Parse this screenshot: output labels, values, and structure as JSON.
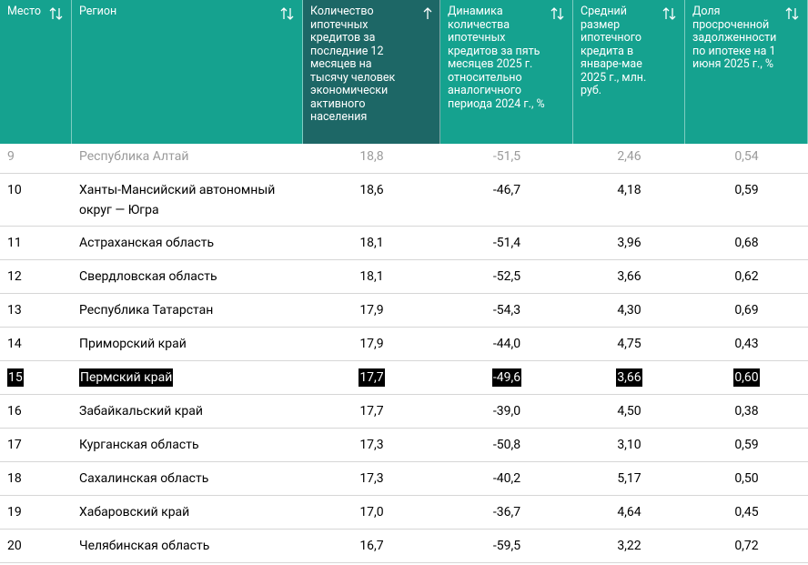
{
  "table": {
    "headers": [
      "Место",
      "Регион",
      "Количество ипотечных кредитов за последние 12 месяцев на тысячу человек экономически активного населения",
      "Динамика количества ипотечных кредитов за пять месяцев 2025 г. относительно аналогичного периода 2024 г., %",
      "Средний размер ипотечного кредита в январе-мае 2025 г., млн. руб.",
      "Доля просроченной задолженности по ипотеке на 1 июня 2025 г., %"
    ],
    "rows": [
      [
        "9",
        "Республика Алтай",
        "18,8",
        "-51,5",
        "2,46",
        "0,54"
      ],
      [
        "10",
        "Ханты-Мансийский автономный округ — Югра",
        "18,6",
        "-46,7",
        "4,18",
        "0,59"
      ],
      [
        "11",
        "Астраханская область",
        "18,1",
        "-51,4",
        "3,96",
        "0,68"
      ],
      [
        "12",
        "Свердловская область",
        "18,1",
        "-52,5",
        "3,66",
        "0,62"
      ],
      [
        "13",
        "Республика Татарстан",
        "17,9",
        "-54,3",
        "4,30",
        "0,69"
      ],
      [
        "14",
        "Приморский край",
        "17,9",
        "-44,0",
        "4,75",
        "0,43"
      ],
      [
        "15",
        "Пермский край",
        "17,7",
        "-49,6",
        "3,66",
        "0,60"
      ],
      [
        "16",
        "Забайкальский край",
        "17,7",
        "-39,0",
        "4,50",
        "0,38"
      ],
      [
        "17",
        "Курганская область",
        "17,3",
        "-50,8",
        "3,10",
        "0,59"
      ],
      [
        "18",
        "Сахалинская область",
        "17,3",
        "-40,2",
        "5,17",
        "0,50"
      ],
      [
        "19",
        "Хабаровский край",
        "17,0",
        "-36,7",
        "4,64",
        "0,45"
      ],
      [
        "20",
        "Челябинская область",
        "16,7",
        "-59,5",
        "3,22",
        "0,72"
      ]
    ]
  }
}
